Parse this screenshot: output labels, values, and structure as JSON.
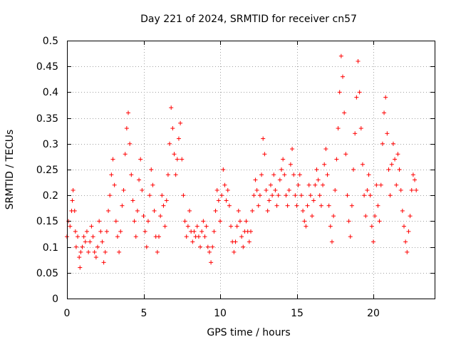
{
  "chart_data": {
    "type": "scatter",
    "title": "Day 221 of 2024, SRMTID for receiver cn57",
    "xlabel": "GPS time / hours",
    "ylabel": "SRMTID / TECUs",
    "xlim": [
      0,
      24
    ],
    "ylim": [
      0,
      0.5
    ],
    "xticks": [
      0,
      5,
      10,
      15,
      20
    ],
    "xtick_labels": [
      "0",
      "5",
      "10",
      "15",
      "20"
    ],
    "yticks": [
      0,
      0.05,
      0.1,
      0.15,
      0.2,
      0.25,
      0.3,
      0.35,
      0.4,
      0.45,
      0.5
    ],
    "ytick_labels": [
      "0",
      "0.05",
      "0.1",
      "0.15",
      "0.2",
      "0.25",
      "0.3",
      "0.35",
      "0.4",
      "0.45",
      "0.5"
    ],
    "grid": true,
    "marker": "+",
    "color": "#ff0000",
    "series": [
      {
        "name": "cn57",
        "points": [
          [
            0.0,
            0.12
          ],
          [
            0.1,
            0.15
          ],
          [
            0.2,
            0.14
          ],
          [
            0.3,
            0.17
          ],
          [
            0.35,
            0.19
          ],
          [
            0.4,
            0.21
          ],
          [
            0.5,
            0.17
          ],
          [
            0.55,
            0.13
          ],
          [
            0.6,
            0.1
          ],
          [
            0.7,
            0.12
          ],
          [
            0.8,
            0.08
          ],
          [
            0.85,
            0.06
          ],
          [
            0.9,
            0.09
          ],
          [
            1.0,
            0.1
          ],
          [
            1.1,
            0.12
          ],
          [
            1.2,
            0.11
          ],
          [
            1.3,
            0.13
          ],
          [
            1.4,
            0.09
          ],
          [
            1.5,
            0.11
          ],
          [
            1.6,
            0.14
          ],
          [
            1.7,
            0.12
          ],
          [
            1.8,
            0.09
          ],
          [
            1.9,
            0.08
          ],
          [
            2.0,
            0.1
          ],
          [
            2.1,
            0.15
          ],
          [
            2.2,
            0.13
          ],
          [
            2.3,
            0.11
          ],
          [
            2.4,
            0.07
          ],
          [
            2.5,
            0.09
          ],
          [
            2.6,
            0.13
          ],
          [
            2.7,
            0.17
          ],
          [
            2.8,
            0.2
          ],
          [
            2.9,
            0.24
          ],
          [
            3.0,
            0.27
          ],
          [
            3.1,
            0.22
          ],
          [
            3.2,
            0.15
          ],
          [
            3.3,
            0.12
          ],
          [
            3.4,
            0.09
          ],
          [
            3.5,
            0.13
          ],
          [
            3.6,
            0.18
          ],
          [
            3.7,
            0.21
          ],
          [
            3.8,
            0.28
          ],
          [
            3.9,
            0.33
          ],
          [
            4.0,
            0.36
          ],
          [
            4.1,
            0.3
          ],
          [
            4.2,
            0.24
          ],
          [
            4.3,
            0.19
          ],
          [
            4.4,
            0.15
          ],
          [
            4.5,
            0.12
          ],
          [
            4.6,
            0.17
          ],
          [
            4.7,
            0.23
          ],
          [
            4.8,
            0.27
          ],
          [
            4.9,
            0.21
          ],
          [
            5.0,
            0.16
          ],
          [
            5.1,
            0.13
          ],
          [
            5.2,
            0.1
          ],
          [
            5.3,
            0.15
          ],
          [
            5.4,
            0.2
          ],
          [
            5.5,
            0.25
          ],
          [
            5.6,
            0.22
          ],
          [
            5.7,
            0.17
          ],
          [
            5.8,
            0.12
          ],
          [
            5.9,
            0.09
          ],
          [
            6.0,
            0.12
          ],
          [
            6.1,
            0.16
          ],
          [
            6.2,
            0.2
          ],
          [
            6.3,
            0.18
          ],
          [
            6.4,
            0.14
          ],
          [
            6.5,
            0.19
          ],
          [
            6.6,
            0.24
          ],
          [
            6.7,
            0.3
          ],
          [
            6.8,
            0.37
          ],
          [
            6.9,
            0.33
          ],
          [
            7.0,
            0.28
          ],
          [
            7.1,
            0.24
          ],
          [
            7.2,
            0.27
          ],
          [
            7.3,
            0.31
          ],
          [
            7.4,
            0.34
          ],
          [
            7.5,
            0.27
          ],
          [
            7.6,
            0.2
          ],
          [
            7.7,
            0.15
          ],
          [
            7.8,
            0.12
          ],
          [
            7.9,
            0.14
          ],
          [
            8.0,
            0.17
          ],
          [
            8.1,
            0.13
          ],
          [
            8.2,
            0.11
          ],
          [
            8.3,
            0.13
          ],
          [
            8.4,
            0.12
          ],
          [
            8.5,
            0.14
          ],
          [
            8.6,
            0.12
          ],
          [
            8.7,
            0.1
          ],
          [
            8.8,
            0.13
          ],
          [
            8.9,
            0.15
          ],
          [
            9.0,
            0.12
          ],
          [
            9.1,
            0.14
          ],
          [
            9.2,
            0.1
          ],
          [
            9.3,
            0.09
          ],
          [
            9.4,
            0.07
          ],
          [
            9.5,
            0.1
          ],
          [
            9.6,
            0.13
          ],
          [
            9.7,
            0.17
          ],
          [
            9.8,
            0.21
          ],
          [
            9.9,
            0.19
          ],
          [
            10.0,
            0.15
          ],
          [
            10.1,
            0.2
          ],
          [
            10.2,
            0.25
          ],
          [
            10.3,
            0.22
          ],
          [
            10.4,
            0.19
          ],
          [
            10.5,
            0.21
          ],
          [
            10.6,
            0.18
          ],
          [
            10.7,
            0.14
          ],
          [
            10.8,
            0.11
          ],
          [
            10.9,
            0.09
          ],
          [
            11.0,
            0.11
          ],
          [
            11.1,
            0.14
          ],
          [
            11.2,
            0.17
          ],
          [
            11.3,
            0.15
          ],
          [
            11.4,
            0.12
          ],
          [
            11.5,
            0.1
          ],
          [
            11.6,
            0.13
          ],
          [
            11.7,
            0.15
          ],
          [
            11.8,
            0.13
          ],
          [
            11.9,
            0.11
          ],
          [
            12.0,
            0.13
          ],
          [
            12.1,
            0.17
          ],
          [
            12.2,
            0.2
          ],
          [
            12.3,
            0.23
          ],
          [
            12.4,
            0.21
          ],
          [
            12.5,
            0.18
          ],
          [
            12.6,
            0.2
          ],
          [
            12.7,
            0.24
          ],
          [
            12.8,
            0.31
          ],
          [
            12.9,
            0.28
          ],
          [
            13.0,
            0.21
          ],
          [
            13.1,
            0.17
          ],
          [
            13.2,
            0.19
          ],
          [
            13.3,
            0.22
          ],
          [
            13.4,
            0.2
          ],
          [
            13.5,
            0.24
          ],
          [
            13.6,
            0.21
          ],
          [
            13.7,
            0.18
          ],
          [
            13.8,
            0.2
          ],
          [
            13.9,
            0.23
          ],
          [
            14.0,
            0.25
          ],
          [
            14.1,
            0.27
          ],
          [
            14.2,
            0.24
          ],
          [
            14.3,
            0.2
          ],
          [
            14.4,
            0.18
          ],
          [
            14.5,
            0.21
          ],
          [
            14.6,
            0.26
          ],
          [
            14.7,
            0.29
          ],
          [
            14.8,
            0.24
          ],
          [
            14.9,
            0.2
          ],
          [
            15.0,
            0.18
          ],
          [
            15.1,
            0.22
          ],
          [
            15.2,
            0.24
          ],
          [
            15.3,
            0.2
          ],
          [
            15.4,
            0.17
          ],
          [
            15.5,
            0.15
          ],
          [
            15.6,
            0.14
          ],
          [
            15.7,
            0.18
          ],
          [
            15.8,
            0.22
          ],
          [
            15.9,
            0.2
          ],
          [
            16.0,
            0.16
          ],
          [
            16.1,
            0.19
          ],
          [
            16.2,
            0.22
          ],
          [
            16.3,
            0.25
          ],
          [
            16.4,
            0.23
          ],
          [
            16.5,
            0.2
          ],
          [
            16.6,
            0.18
          ],
          [
            16.7,
            0.22
          ],
          [
            16.8,
            0.26
          ],
          [
            16.9,
            0.29
          ],
          [
            17.0,
            0.24
          ],
          [
            17.1,
            0.18
          ],
          [
            17.2,
            0.14
          ],
          [
            17.3,
            0.11
          ],
          [
            17.4,
            0.16
          ],
          [
            17.5,
            0.21
          ],
          [
            17.6,
            0.27
          ],
          [
            17.7,
            0.33
          ],
          [
            17.8,
            0.4
          ],
          [
            17.9,
            0.47
          ],
          [
            18.0,
            0.43
          ],
          [
            18.1,
            0.36
          ],
          [
            18.2,
            0.28
          ],
          [
            18.3,
            0.2
          ],
          [
            18.4,
            0.15
          ],
          [
            18.5,
            0.12
          ],
          [
            18.6,
            0.18
          ],
          [
            18.7,
            0.25
          ],
          [
            18.8,
            0.32
          ],
          [
            18.9,
            0.39
          ],
          [
            19.0,
            0.46
          ],
          [
            19.1,
            0.4
          ],
          [
            19.2,
            0.33
          ],
          [
            19.3,
            0.26
          ],
          [
            19.4,
            0.2
          ],
          [
            19.5,
            0.16
          ],
          [
            19.6,
            0.21
          ],
          [
            19.7,
            0.24
          ],
          [
            19.8,
            0.2
          ],
          [
            19.9,
            0.14
          ],
          [
            20.0,
            0.11
          ],
          [
            20.1,
            0.16
          ],
          [
            20.2,
            0.22
          ],
          [
            20.3,
            0.18
          ],
          [
            20.4,
            0.15
          ],
          [
            20.5,
            0.22
          ],
          [
            20.6,
            0.3
          ],
          [
            20.7,
            0.36
          ],
          [
            20.8,
            0.39
          ],
          [
            20.9,
            0.32
          ],
          [
            21.0,
            0.25
          ],
          [
            21.1,
            0.2
          ],
          [
            21.2,
            0.26
          ],
          [
            21.3,
            0.3
          ],
          [
            21.4,
            0.27
          ],
          [
            21.5,
            0.22
          ],
          [
            21.6,
            0.28
          ],
          [
            21.7,
            0.25
          ],
          [
            21.8,
            0.21
          ],
          [
            21.9,
            0.17
          ],
          [
            22.0,
            0.14
          ],
          [
            22.1,
            0.11
          ],
          [
            22.2,
            0.09
          ],
          [
            22.3,
            0.13
          ],
          [
            22.4,
            0.16
          ],
          [
            22.5,
            0.21
          ],
          [
            22.6,
            0.24
          ],
          [
            22.7,
            0.23
          ],
          [
            22.8,
            0.21
          ]
        ]
      }
    ]
  }
}
